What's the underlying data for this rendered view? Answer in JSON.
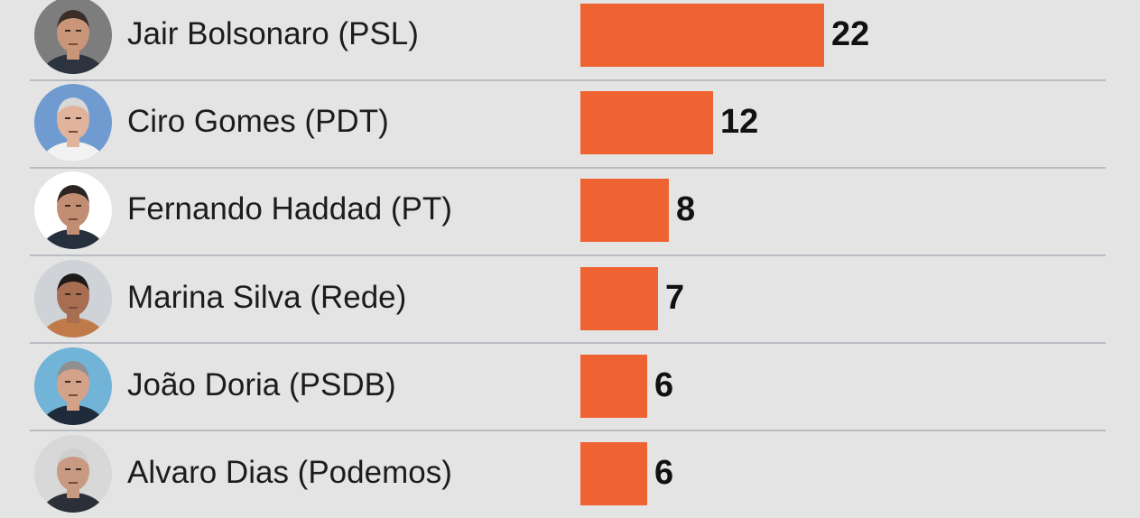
{
  "chart_data": {
    "type": "bar",
    "orientation": "horizontal",
    "categories": [
      "Jair Bolsonaro (PSL)",
      "Ciro Gomes (PDT)",
      "Fernando Haddad (PT)",
      "Marina Silva (Rede)",
      "João Doria (PSDB)",
      "Alvaro Dias (Podemos)"
    ],
    "values": [
      22,
      12,
      8,
      7,
      6,
      6
    ],
    "value_labels": [
      "22",
      "12",
      "8",
      "7",
      "6",
      "6"
    ],
    "data_labels": "end-of-bar",
    "avatars": [
      "avatar-photo",
      "avatar-photo",
      "avatar-photo",
      "avatar-photo",
      "avatar-photo",
      "avatar-photo"
    ],
    "grid": false,
    "legend": "none"
  },
  "colors": {
    "bar": "#ef6231",
    "background": "#e4e4e4",
    "separator": "#b9bcc2",
    "label_text": "#1c1c1c",
    "value_text": "#111111"
  }
}
